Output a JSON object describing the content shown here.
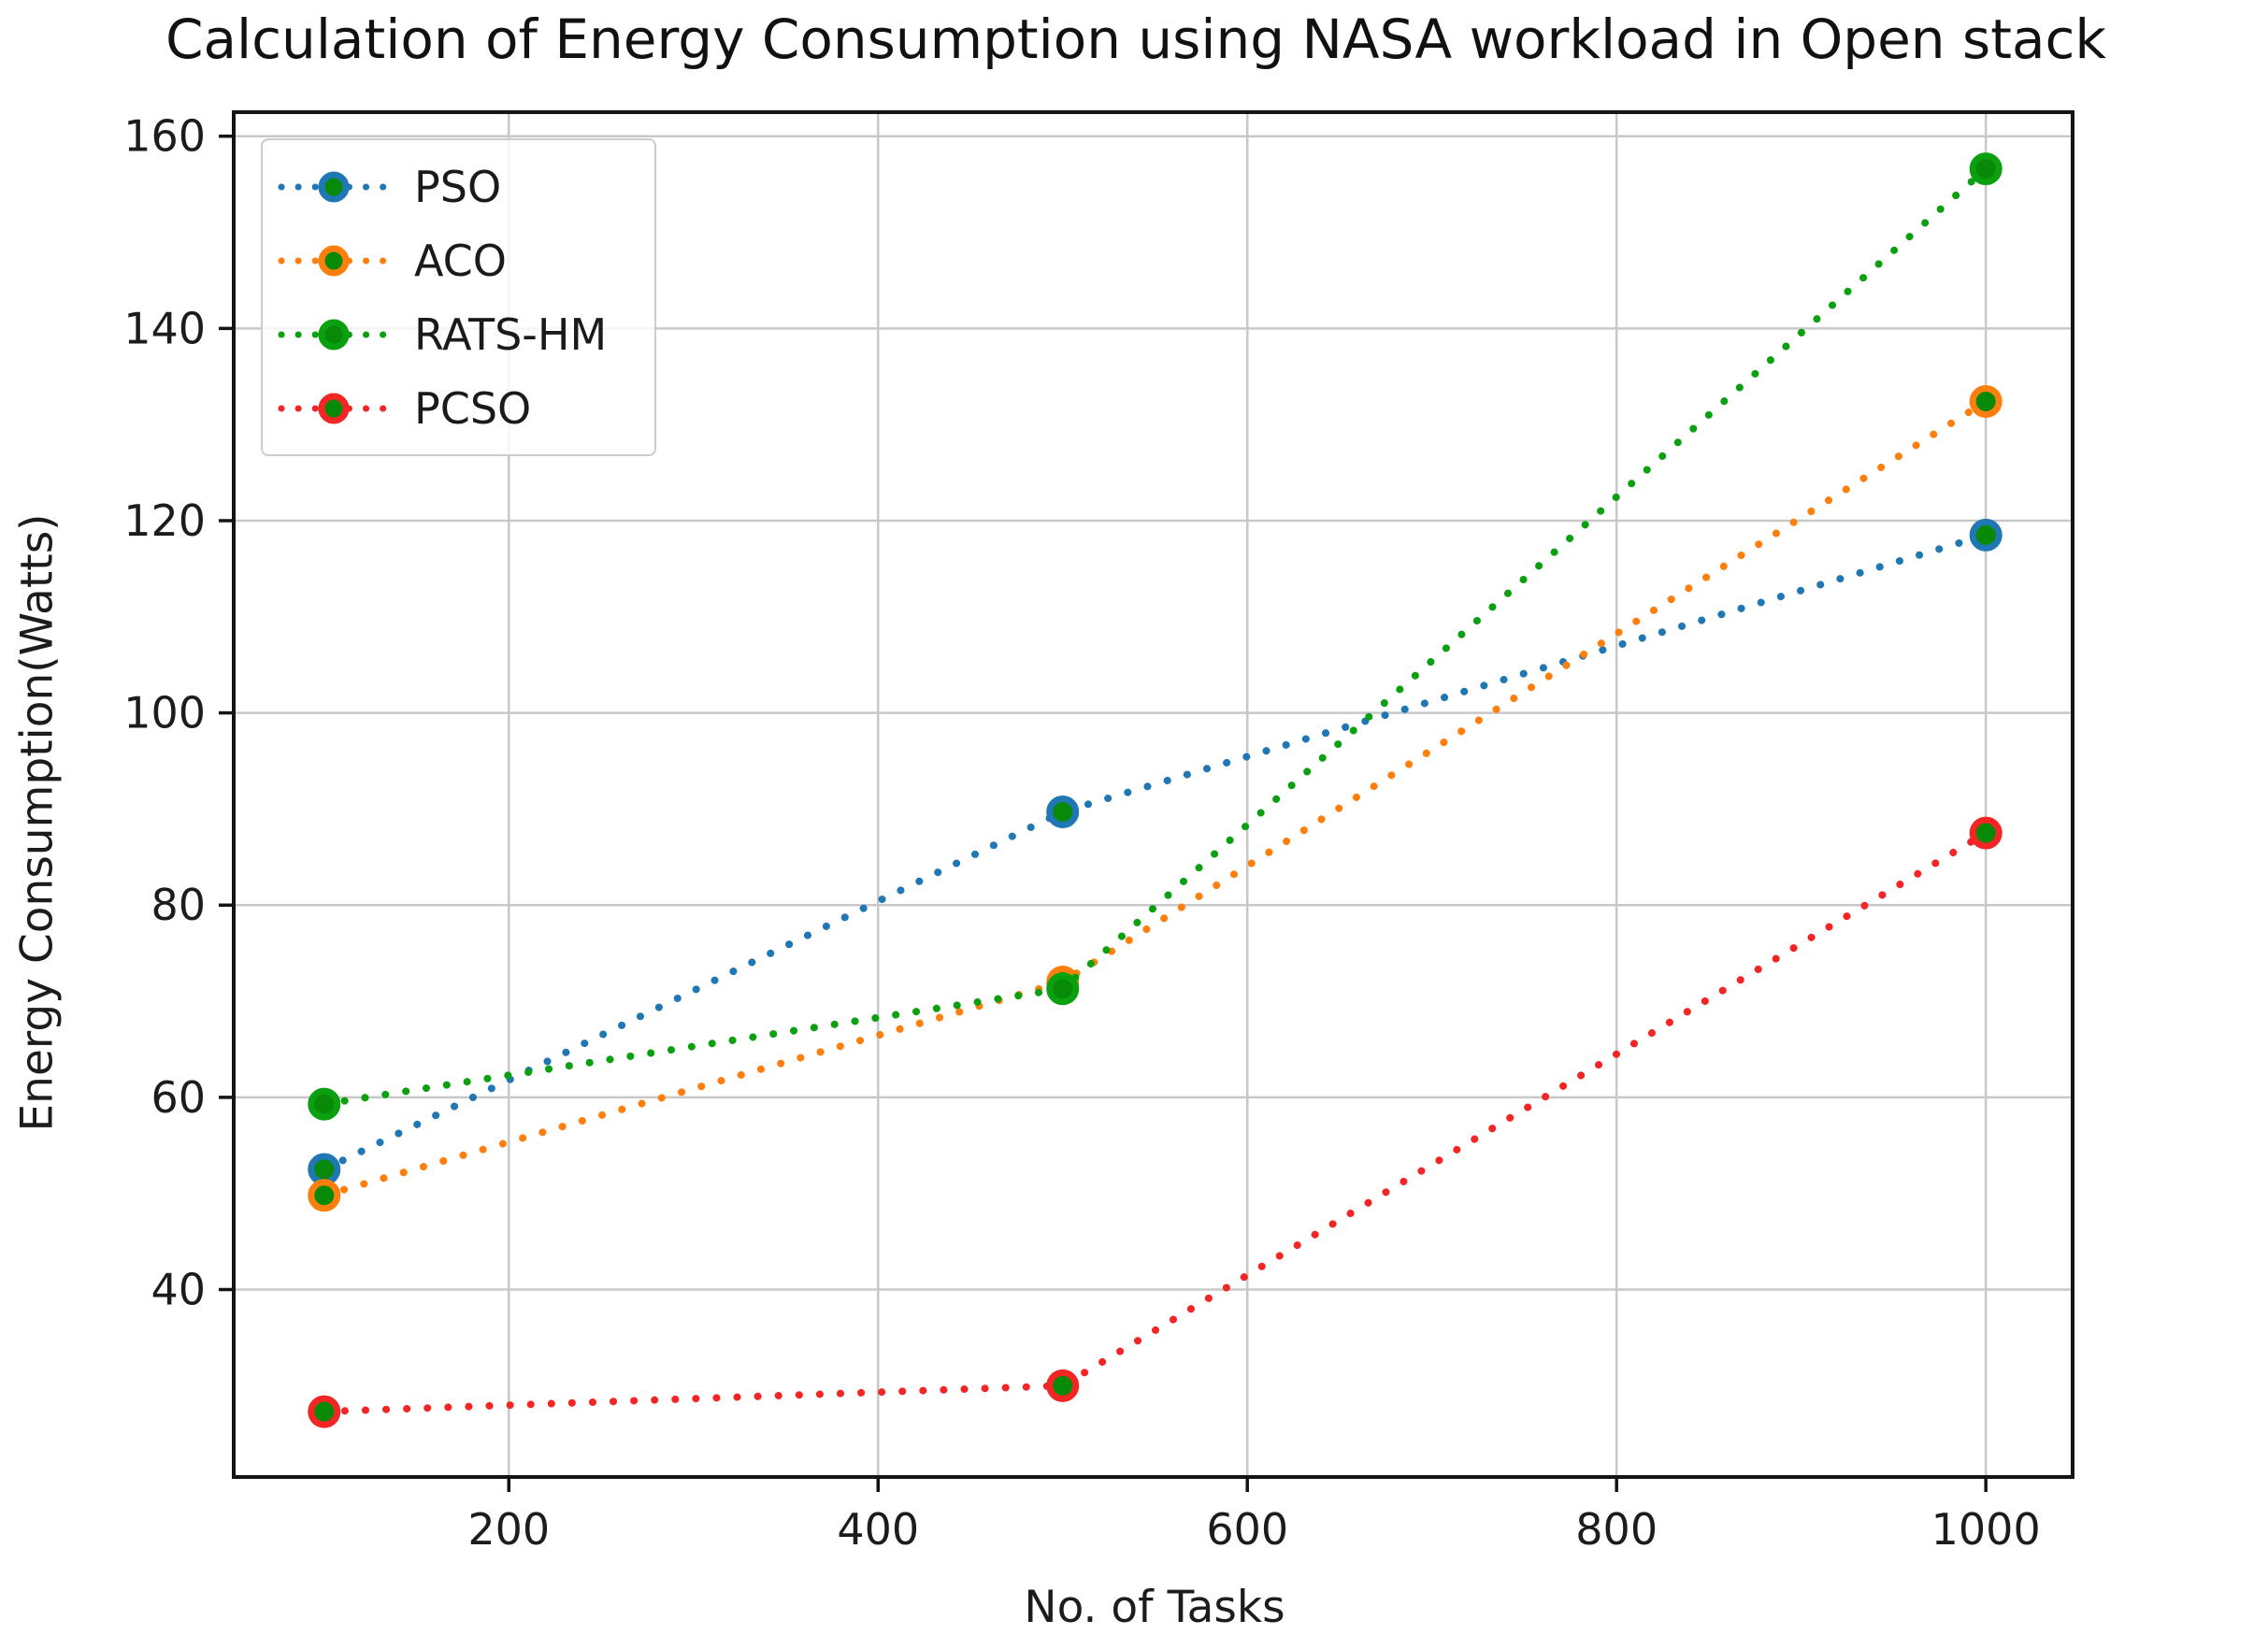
{
  "chart_data": {
    "type": "line",
    "title": "Calculation of Energy Consumption using NASA workload in Open stack",
    "xlabel": "No. of Tasks",
    "ylabel": "Energy Consumption(Watts)",
    "x": [
      100,
      500,
      1000
    ],
    "series": [
      {
        "name": "PSO",
        "color": "#1f77b4",
        "values": [
          52.5,
          89.7,
          118.5
        ]
      },
      {
        "name": "ACO",
        "color": "#ff7f0e",
        "values": [
          49.8,
          72.0,
          132.4
        ]
      },
      {
        "name": "RATS-HM",
        "color": "#0aa00f",
        "values": [
          59.3,
          71.3,
          156.6
        ]
      },
      {
        "name": "PCSO",
        "color": "#f42525",
        "values": [
          27.3,
          30.0,
          87.5
        ]
      }
    ],
    "line_style": "dotted",
    "marker": "circle",
    "marker_face_color": "#088a08",
    "xticks": [
      "200",
      "400",
      "600",
      "800",
      "1000"
    ],
    "xtick_values": [
      200,
      400,
      600,
      800,
      1000
    ],
    "yticks": [
      "40",
      "60",
      "80",
      "100",
      "120",
      "140",
      "160"
    ],
    "ytick_values": [
      40,
      60,
      80,
      100,
      120,
      140,
      160
    ],
    "xlim": [
      51,
      1047
    ],
    "ylim": [
      20.5,
      162.5
    ],
    "grid": true,
    "grid_color": "#c8c8c8",
    "spine_color": "#141414",
    "tick_label_color": "#1c1c1c",
    "legend_position": "upper-left"
  }
}
